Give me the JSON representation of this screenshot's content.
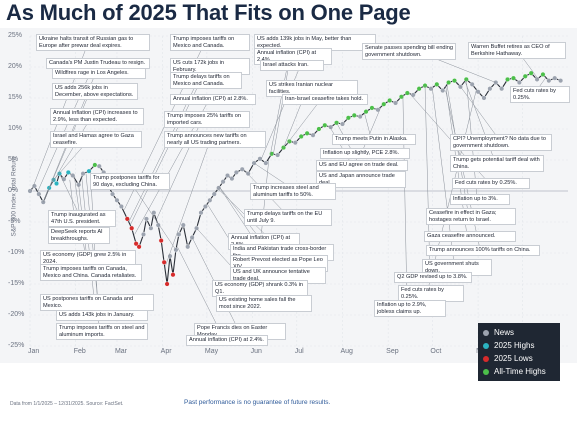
{
  "title": "As Much of 2025 That Fits on One Page",
  "footer": {
    "source": "Data from 1/1/2025 – 12/31/2025. Source: FactSet.",
    "disclaimer": "Past performance is no guarantee of future results."
  },
  "legend": {
    "items": [
      {
        "label": "News",
        "color": "#9ca3af"
      },
      {
        "label": "2025 Highs",
        "color": "#2bb3c0"
      },
      {
        "label": "2025 Lows",
        "color": "#d62b2b"
      },
      {
        "label": "All-Time Highs",
        "color": "#4cbf4a"
      }
    ]
  },
  "colors": {
    "line": "#2a2f38",
    "news": "#9ca3af",
    "high": "#2bb3c0",
    "low": "#d62b2b",
    "ath": "#4cbf4a"
  },
  "chart_data": {
    "type": "line",
    "xlabel": "",
    "ylabel": "S&P 500 Index Total Return",
    "ylim": [
      -25,
      25
    ],
    "yticks": [
      "25%",
      "20%",
      "15%",
      "10%",
      "5%",
      "0%",
      "-5%",
      "-10%",
      "-15%",
      "-20%",
      "-25%"
    ],
    "xticks": [
      "Jan",
      "Feb",
      "Mar",
      "Apr",
      "May",
      "Jun",
      "Jul",
      "Aug",
      "Sep",
      "Oct",
      "Nov",
      "Dec"
    ],
    "grid": true,
    "series": [
      {
        "values": [
          [
            0,
            0.0,
            "news"
          ],
          [
            3,
            0.8,
            "news"
          ],
          [
            6,
            -0.5,
            "news"
          ],
          [
            9,
            -1.8,
            "news"
          ],
          [
            13,
            0.5,
            "high"
          ],
          [
            16,
            1.8,
            "high"
          ],
          [
            18,
            1.2,
            "high"
          ],
          [
            20,
            2.8,
            "high"
          ],
          [
            23,
            1.9,
            "news"
          ],
          [
            26,
            3.0,
            "high"
          ],
          [
            29,
            2.5,
            "news"
          ],
          [
            33,
            1.0,
            "news"
          ],
          [
            36,
            2.8,
            "news"
          ],
          [
            40,
            3.2,
            "high"
          ],
          [
            44,
            4.2,
            "ath"
          ],
          [
            47,
            4.0,
            "news"
          ],
          [
            50,
            3.0,
            "news"
          ],
          [
            53,
            1.0,
            "news"
          ],
          [
            56,
            -0.5,
            "news"
          ],
          [
            59,
            -1.5,
            "news"
          ],
          [
            62,
            -2.5,
            "news"
          ],
          [
            66,
            -4.5,
            "low"
          ],
          [
            69,
            -6.0,
            "low"
          ],
          [
            72,
            -8.5,
            "low"
          ],
          [
            74,
            -9.0,
            "low"
          ],
          [
            77,
            -7.0,
            "news"
          ],
          [
            79,
            -4.5,
            "news"
          ],
          [
            82,
            -6.0,
            "news"
          ],
          [
            84,
            -3.5,
            "news"
          ],
          [
            87,
            -5.5,
            "news"
          ],
          [
            89,
            -8.0,
            "low"
          ],
          [
            91,
            -11.5,
            "low"
          ],
          [
            93,
            -15.0,
            "low"
          ],
          [
            95,
            -10.5,
            "news"
          ],
          [
            97,
            -13.5,
            "low"
          ],
          [
            99,
            -9.5,
            "news"
          ],
          [
            101,
            -7.0,
            "news"
          ],
          [
            104,
            -5.5,
            "news"
          ],
          [
            107,
            -9.0,
            "news"
          ],
          [
            110,
            -7.5,
            "news"
          ],
          [
            113,
            -6.0,
            "news"
          ],
          [
            116,
            -3.5,
            "news"
          ],
          [
            119,
            -2.5,
            "news"
          ],
          [
            122,
            -1.5,
            "news"
          ],
          [
            125,
            -0.5,
            "news"
          ],
          [
            128,
            0.5,
            "news"
          ],
          [
            131,
            1.5,
            "news"
          ],
          [
            134,
            2.5,
            "news"
          ],
          [
            137,
            2.0,
            "news"
          ],
          [
            140,
            3.0,
            "news"
          ],
          [
            144,
            3.5,
            "news"
          ],
          [
            148,
            2.8,
            "news"
          ],
          [
            152,
            4.5,
            "news"
          ],
          [
            156,
            5.2,
            "news"
          ],
          [
            160,
            4.5,
            "news"
          ],
          [
            164,
            6.0,
            "ath"
          ],
          [
            168,
            5.8,
            "news"
          ],
          [
            172,
            7.0,
            "ath"
          ],
          [
            176,
            8.0,
            "ath"
          ],
          [
            180,
            7.8,
            "news"
          ],
          [
            184,
            8.8,
            "ath"
          ],
          [
            188,
            9.3,
            "ath"
          ],
          [
            192,
            9.0,
            "news"
          ],
          [
            196,
            10.0,
            "ath"
          ],
          [
            200,
            10.6,
            "ath"
          ],
          [
            204,
            10.3,
            "news"
          ],
          [
            208,
            11.0,
            "ath"
          ],
          [
            212,
            10.8,
            "news"
          ],
          [
            216,
            11.8,
            "ath"
          ],
          [
            220,
            12.2,
            "ath"
          ],
          [
            224,
            12.0,
            "news"
          ],
          [
            228,
            12.8,
            "ath"
          ],
          [
            232,
            13.4,
            "ath"
          ],
          [
            236,
            13.1,
            "news"
          ],
          [
            240,
            14.0,
            "ath"
          ],
          [
            244,
            14.6,
            "ath"
          ],
          [
            248,
            14.2,
            "news"
          ],
          [
            252,
            15.2,
            "ath"
          ],
          [
            256,
            15.8,
            "ath"
          ],
          [
            260,
            15.5,
            "news"
          ],
          [
            264,
            16.5,
            "ath"
          ],
          [
            268,
            17.0,
            "ath"
          ],
          [
            272,
            16.5,
            "news"
          ],
          [
            276,
            17.2,
            "ath"
          ],
          [
            280,
            16.2,
            "news"
          ],
          [
            284,
            17.5,
            "ath"
          ],
          [
            288,
            17.8,
            "ath"
          ],
          [
            292,
            16.8,
            "news"
          ],
          [
            296,
            18.0,
            "ath"
          ],
          [
            300,
            17.2,
            "news"
          ],
          [
            304,
            16.0,
            "news"
          ],
          [
            308,
            15.0,
            "news"
          ],
          [
            312,
            16.5,
            "news"
          ],
          [
            316,
            17.5,
            "news"
          ],
          [
            320,
            16.5,
            "news"
          ],
          [
            324,
            18.0,
            "ath"
          ],
          [
            328,
            18.2,
            "ath"
          ],
          [
            332,
            17.5,
            "news"
          ],
          [
            336,
            18.5,
            "ath"
          ],
          [
            340,
            19.0,
            "ath"
          ],
          [
            344,
            18.0,
            "news"
          ],
          [
            348,
            18.8,
            "ath"
          ],
          [
            352,
            17.8,
            "news"
          ],
          [
            356,
            18.2,
            "news"
          ],
          [
            360,
            17.8,
            "news"
          ]
        ]
      }
    ],
    "annotations": [
      {
        "text": "Ukraine halts transit of Russian gas to Europe after prewar deal expires.",
        "day": 1,
        "value": 0.0
      },
      {
        "text": "Canada's PM Justin Trudeau to resign.",
        "day": 5,
        "value": -0.2
      },
      {
        "text": "Wildfires rage in Los Angeles.",
        "day": 9,
        "value": -1.8
      },
      {
        "text": "US adds 256k jobs in December, above expectations.",
        "day": 9,
        "value": -1.8
      },
      {
        "text": "Annual inflation (CPI) increases to 2.9%, less than expected.",
        "day": 14,
        "value": 0.8
      },
      {
        "text": "Israel and Hamas agree to Gaza ceasefire.",
        "day": 15,
        "value": 1.5
      },
      {
        "text": "Trump inaugurated as 47th U.S. president.",
        "day": 20,
        "value": 2.8
      },
      {
        "text": "DeepSeek reports AI breakthroughs.",
        "day": 27,
        "value": 1.8
      },
      {
        "text": "US economy (GDP) grew 2.5% in 2024.",
        "day": 30,
        "value": 2.5
      },
      {
        "text": "Trump imposes tariffs on Canada, Mexico and China. Canada retaliates.",
        "day": 33,
        "value": 1.0
      },
      {
        "text": "US postpones tariffs on Canada and Mexico.",
        "day": 35,
        "value": 2.5
      },
      {
        "text": "US adds 143k jobs in January.",
        "day": 38,
        "value": 2.8
      },
      {
        "text": "Trump imposes tariffs on steel and aluminum imports.",
        "day": 41,
        "value": 3.2
      },
      {
        "text": "Trump postpones tariffs for 90 days, excluding China.",
        "day": 99,
        "value": -9.5
      },
      {
        "text": "Trump imposes tariffs on Mexico and Canada.",
        "day": 64,
        "value": -3.0
      },
      {
        "text": "US cuts 172k jobs in February.",
        "day": 67,
        "value": -5.0
      },
      {
        "text": "Trump delays tariffs on Mexico and Canada.",
        "day": 68,
        "value": -5.5
      },
      {
        "text": "Annual inflation (CPI) at 2.8%.",
        "day": 71,
        "value": -7.0
      },
      {
        "text": "Trump imposes 25% tariffs on imported cars.",
        "day": 86,
        "value": -4.5
      },
      {
        "text": "Trump announces new tariffs on nearly all US trading partners.",
        "day": 92,
        "value": -12.0
      },
      {
        "text": "US adds 139k jobs in May, better than expected.",
        "day": 157,
        "value": 5.2
      },
      {
        "text": "Annual inflation (CPI) at 2.4%.",
        "day": 163,
        "value": 5.8
      },
      {
        "text": "Israel attacks Iran.",
        "day": 165,
        "value": 5.8
      },
      {
        "text": "US strikes Iranian nuclear facilities.",
        "day": 172,
        "value": 7.0
      },
      {
        "text": "Iran-Israel ceasefire takes hold.",
        "day": 174,
        "value": 7.5
      },
      {
        "text": "Senate passes spending bill ending government shutdown.",
        "day": 316,
        "value": 17.5
      },
      {
        "text": "Warren Buffet retires as CEO of Berkshire Hathaway.",
        "day": 345,
        "value": 18.0
      },
      {
        "text": "Fed cuts rates by 0.25%.",
        "day": 350,
        "value": 18.3
      },
      {
        "text": "Trump meets Putin in Alaska.",
        "day": 227,
        "value": 12.5
      },
      {
        "text": "Inflation up slightly, PCE 2.8%.",
        "day": 238,
        "value": 13.5
      },
      {
        "text": "US and EU agree on trade deal.",
        "day": 208,
        "value": 11.0
      },
      {
        "text": "US and Japan announce trade deal.",
        "day": 203,
        "value": 10.5
      },
      {
        "text": "CPI? Unemployment? No data due to government shutdown.",
        "day": 290,
        "value": 17.5
      },
      {
        "text": "Trump gets potential tariff deal with China.",
        "day": 295,
        "value": 17.8
      },
      {
        "text": "Fed cuts rates by 0.25%.",
        "day": 258,
        "value": 15.6
      },
      {
        "text": "Inflation up to 3%.",
        "day": 296,
        "value": 18.0
      },
      {
        "text": "Ceasefire in effect in Gaza; hostages return to Israel.",
        "day": 283,
        "value": 17.0
      },
      {
        "text": "Gaza ceasefire announced.",
        "day": 282,
        "value": 17.0
      },
      {
        "text": "Trump announces 100% tariffs on China.",
        "day": 282,
        "value": 16.2
      },
      {
        "text": "US government shuts down.",
        "day": 273,
        "value": 16.5
      },
      {
        "text": "Q2 GDP revised up to 3.8%.",
        "day": 268,
        "value": 17.0
      },
      {
        "text": "Fed cuts rates by 0.25%.",
        "day": 303,
        "value": 16.5
      },
      {
        "text": "Inflation up to 2.9%, jobless claims up.",
        "day": 253,
        "value": 15.2
      },
      {
        "text": "Trump increases steel and aluminum tariffs to 50%.",
        "day": 152,
        "value": 4.5
      },
      {
        "text": "Trump delays tariffs on the EU until July 9.",
        "day": 146,
        "value": 3.2
      },
      {
        "text": "Annual inflation (CPI) at 2.8%.",
        "day": 162,
        "value": 5.0
      },
      {
        "text": "India and Pakistan trade cross-border fire.",
        "day": 127,
        "value": 0.5
      },
      {
        "text": "Robert Prevost elected as Pope Leo XIV.",
        "day": 128,
        "value": 0.8
      },
      {
        "text": "US and UK announce tentative trade deal.",
        "day": 128,
        "value": 0.8
      },
      {
        "text": "US economy (GDP) shrank 0.3% in Q1.",
        "day": 120,
        "value": -2.0
      },
      {
        "text": "US existing home sales fall the most since 2022.",
        "day": 113,
        "value": -6.0
      },
      {
        "text": "Pope Francis dies on Easter Monday.",
        "day": 110,
        "value": -7.5
      },
      {
        "text": "Annual inflation (CPI) at 2.4%.",
        "day": 100,
        "value": -9.0
      }
    ]
  }
}
